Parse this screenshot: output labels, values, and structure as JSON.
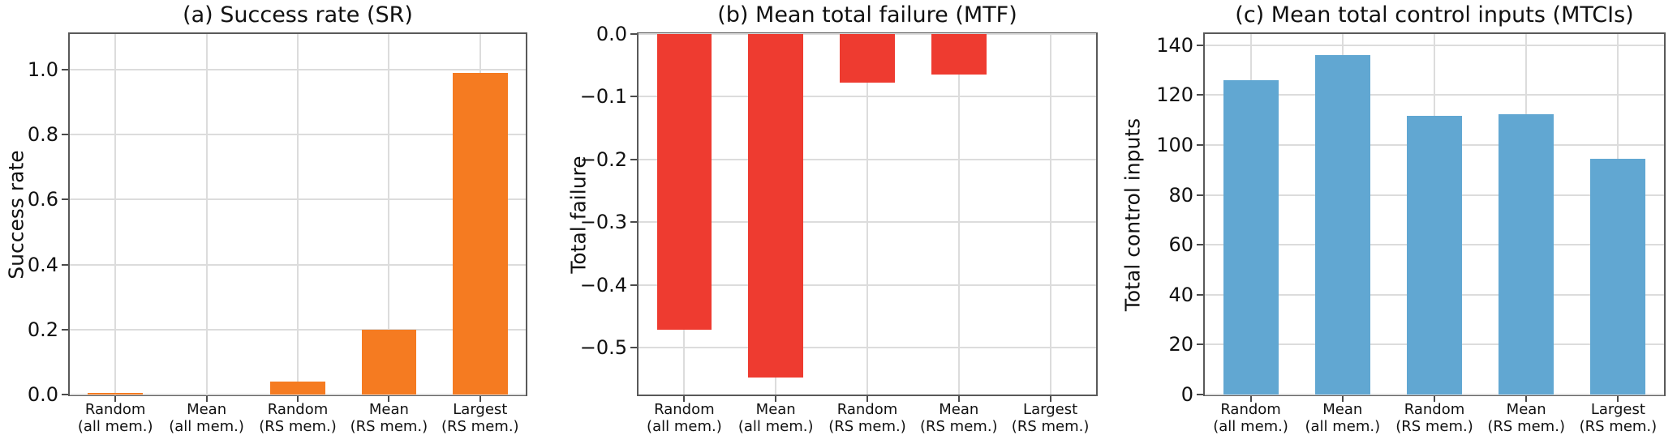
{
  "chart_data": [
    {
      "id": "success-rate",
      "type": "bar",
      "title": "(a) Success rate (SR)",
      "ylabel": "Success rate",
      "xlabel": "",
      "categories": [
        "Random (all mem.)",
        "Mean (all mem.)",
        "Random (RS mem.)",
        "Mean (RS mem.)",
        "Largest (RS mem.)"
      ],
      "categories_line1": [
        "Random",
        "Mean",
        "Random",
        "Mean",
        "Largest"
      ],
      "categories_line2": [
        "(all mem.)",
        "(all mem.)",
        "(RS mem.)",
        "(RS mem.)",
        "(RS mem.)"
      ],
      "values": [
        0.005,
        0,
        0.04,
        0.2,
        0.99
      ],
      "bar_color": "#f57b21",
      "ylim": [
        0,
        1.11
      ],
      "yticks": [
        0.0,
        0.2,
        0.4,
        0.6,
        0.8,
        1.0
      ],
      "ytick_labels": [
        "0.0",
        "0.2",
        "0.4",
        "0.6",
        "0.8",
        "1.0"
      ],
      "grid": true,
      "legend": null
    },
    {
      "id": "mean-total-failure",
      "type": "bar",
      "title": "(b) Mean total failure (MTF)",
      "ylabel": "Total failure",
      "xlabel": "",
      "categories": [
        "Random (all mem.)",
        "Mean (all mem.)",
        "Random (RS mem.)",
        "Mean (RS mem.)",
        "Largest (RS mem.)"
      ],
      "categories_line1": [
        "Random",
        "Mean",
        "Random",
        "Mean",
        "Largest"
      ],
      "categories_line2": [
        "(all mem.)",
        "(all mem.)",
        "(RS mem.)",
        "(RS mem.)",
        "(RS mem.)"
      ],
      "values": [
        -0.471,
        -0.548,
        -0.078,
        -0.065,
        0
      ],
      "bar_color": "#ee3b30",
      "ylim": [
        -0.575,
        0
      ],
      "yticks": [
        0.0,
        -0.1,
        -0.2,
        -0.3,
        -0.4,
        -0.5
      ],
      "ytick_labels": [
        "0.0",
        "−0.1",
        "−0.2",
        "−0.3",
        "−0.4",
        "−0.5"
      ],
      "grid": true,
      "legend": null
    },
    {
      "id": "mean-total-control-inputs",
      "type": "bar",
      "title": "(c) Mean total control inputs (MTCIs)",
      "ylabel": "Total control inputs",
      "xlabel": "",
      "categories": [
        "Random (all mem.)",
        "Mean (all mem.)",
        "Random (RS mem.)",
        "Mean (RS mem.)",
        "Largest (RS mem.)"
      ],
      "categories_line1": [
        "Random",
        "Mean",
        "Random",
        "Mean",
        "Largest"
      ],
      "categories_line2": [
        "(all mem.)",
        "(all mem.)",
        "(RS mem.)",
        "(RS mem.)",
        "(RS mem.)"
      ],
      "values": [
        126,
        136,
        111.8,
        112.2,
        94.5
      ],
      "bar_color": "#61a7d2",
      "ylim": [
        0,
        144.5
      ],
      "yticks": [
        0,
        20,
        40,
        60,
        80,
        100,
        120,
        140
      ],
      "ytick_labels": [
        "0",
        "20",
        "40",
        "60",
        "80",
        "100",
        "120",
        "140"
      ],
      "grid": true,
      "legend": null
    }
  ],
  "style": {
    "grid_color": "#dcdcdc",
    "spine_color": "#595959",
    "tick_color": "#4a4a4a",
    "text_color": "#111111",
    "background": "#ffffff"
  }
}
